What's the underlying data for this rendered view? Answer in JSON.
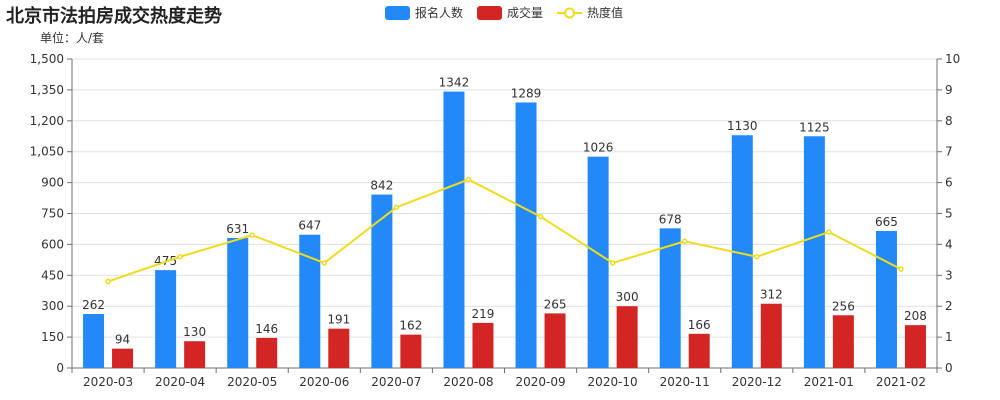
{
  "chart_data": {
    "type": "bar",
    "title": "北京市法拍房成交热度走势",
    "unit_label": "单位：人/套",
    "categories": [
      "2020-03",
      "2020-04",
      "2020-05",
      "2020-06",
      "2020-07",
      "2020-08",
      "2020-09",
      "2020-10",
      "2020-11",
      "2020-12",
      "2021-01",
      "2021-02"
    ],
    "series": [
      {
        "name": "报名人数",
        "type": "bar",
        "axis": "left",
        "color": "#2389F8",
        "values": [
          262,
          475,
          631,
          647,
          842,
          1342,
          1289,
          1026,
          678,
          1130,
          1125,
          665
        ]
      },
      {
        "name": "成交量",
        "type": "bar",
        "axis": "left",
        "color": "#D42525",
        "values": [
          94,
          130,
          146,
          191,
          162,
          219,
          265,
          300,
          166,
          312,
          256,
          208
        ]
      },
      {
        "name": "热度值",
        "type": "line",
        "axis": "right",
        "color": "#F0DC1E",
        "values": [
          2.8,
          3.6,
          4.3,
          3.4,
          5.2,
          6.1,
          4.9,
          3.4,
          4.1,
          3.6,
          4.4,
          3.2
        ]
      }
    ],
    "y_left": {
      "min": 0,
      "max": 1500,
      "ticks": [
        "0",
        "150",
        "300",
        "450",
        "600",
        "750",
        "900",
        "1,050",
        "1,200",
        "1,350",
        "1,500"
      ]
    },
    "y_right": {
      "min": 0,
      "max": 10,
      "ticks": [
        "0",
        "1",
        "2",
        "3",
        "4",
        "5",
        "6",
        "7",
        "8",
        "9",
        "10"
      ]
    },
    "grid": true,
    "legend_position": "top-center"
  }
}
